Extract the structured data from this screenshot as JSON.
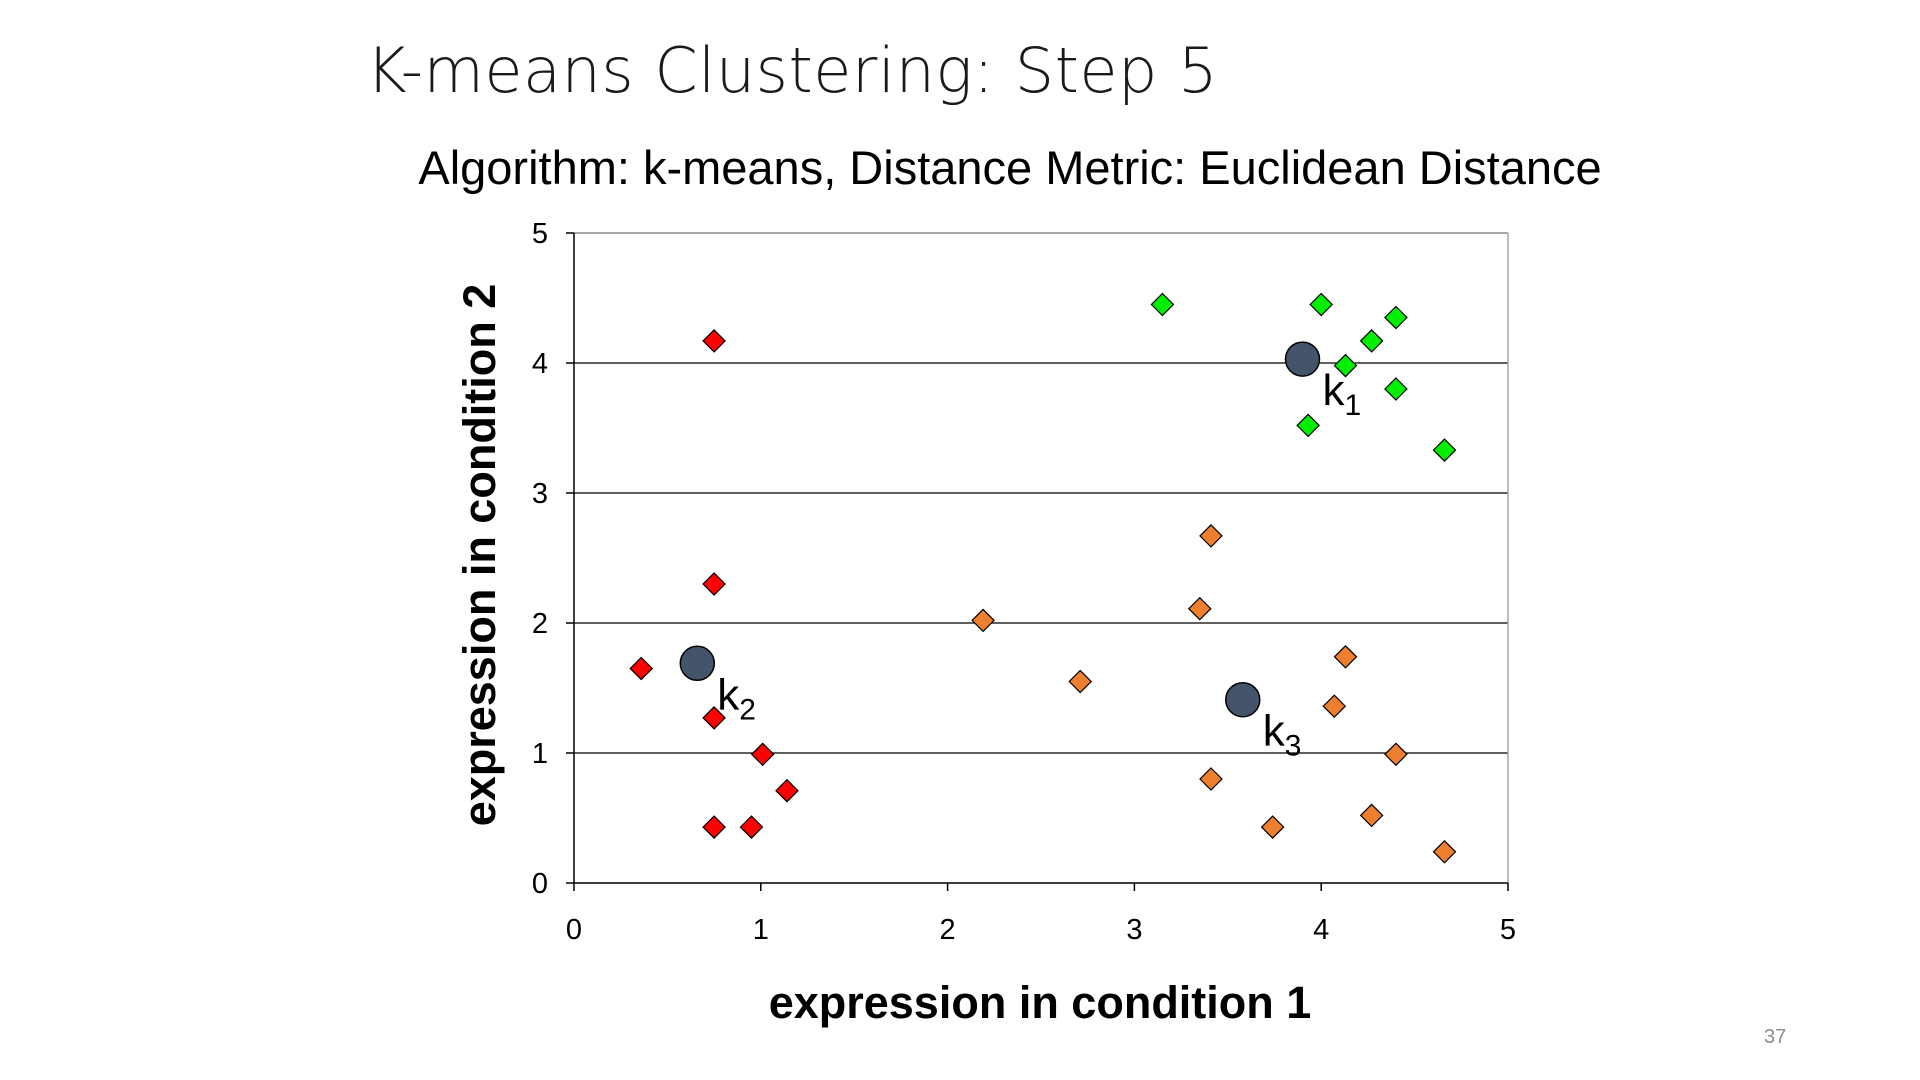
{
  "slide": {
    "title": "K-means Clustering: Step 5",
    "page_number": "37"
  },
  "colors": {
    "cluster_1": "#00ee00",
    "cluster_2": "#ff0000",
    "cluster_3": "#ee7f2f",
    "centroid": "#44546a"
  },
  "chart_data": {
    "type": "scatter",
    "title": "Algorithm: k-means, Distance Metric: Euclidean Distance",
    "xlabel": "expression in condition 1",
    "ylabel": "expression in condition 2",
    "xlim": [
      0,
      5
    ],
    "ylim": [
      0,
      5
    ],
    "xticks": [
      0,
      1,
      2,
      3,
      4,
      5
    ],
    "yticks": [
      0,
      1,
      2,
      3,
      4,
      5
    ],
    "grid": "horizontal",
    "marker": "diamond",
    "series": [
      {
        "color_key": "cluster_1",
        "points": [
          [
            3.15,
            4.45
          ],
          [
            4.0,
            4.45
          ],
          [
            4.4,
            4.35
          ],
          [
            4.27,
            4.17
          ],
          [
            4.13,
            3.98
          ],
          [
            4.4,
            3.8
          ],
          [
            3.93,
            3.52
          ],
          [
            4.66,
            3.33
          ]
        ]
      },
      {
        "color_key": "cluster_2",
        "points": [
          [
            0.75,
            4.17
          ],
          [
            0.75,
            2.3
          ],
          [
            0.36,
            1.65
          ],
          [
            0.75,
            1.27
          ],
          [
            1.01,
            0.99
          ],
          [
            1.14,
            0.71
          ],
          [
            0.75,
            0.43
          ],
          [
            0.95,
            0.43
          ]
        ]
      },
      {
        "color_key": "cluster_3",
        "points": [
          [
            3.41,
            2.67
          ],
          [
            3.35,
            2.11
          ],
          [
            2.19,
            2.02
          ],
          [
            4.13,
            1.74
          ],
          [
            2.71,
            1.55
          ],
          [
            4.07,
            1.36
          ],
          [
            4.4,
            0.99
          ],
          [
            3.41,
            0.8
          ],
          [
            4.27,
            0.52
          ],
          [
            3.74,
            0.43
          ],
          [
            4.66,
            0.24
          ]
        ]
      }
    ],
    "centroids": [
      {
        "label": "k",
        "subscript": "1",
        "x": 3.9,
        "y": 4.03
      },
      {
        "label": "k",
        "subscript": "2",
        "x": 0.66,
        "y": 1.69
      },
      {
        "label": "k",
        "subscript": "3",
        "x": 3.58,
        "y": 1.41
      }
    ]
  }
}
